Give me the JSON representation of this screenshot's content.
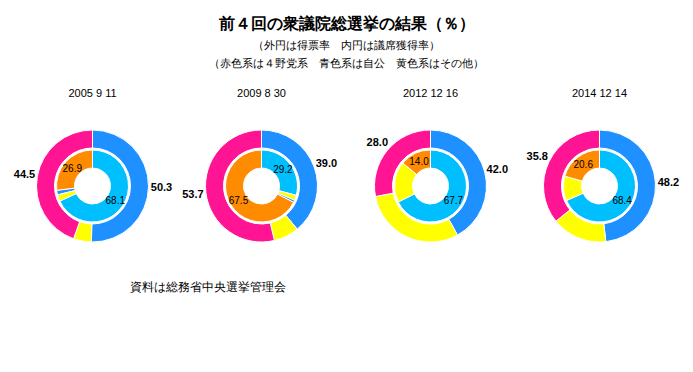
{
  "title": "前４回の衆議院総選挙の結果（％）",
  "subtitle": [
    "（外円は得票率　内円は議席獲得率）",
    "（赤色系は４野党系　青色系は自公　黄色系はその他）"
  ],
  "annotations": [
    "資料は総務省中央選挙管理会"
  ],
  "chart_data": [
    {
      "type": "pie",
      "title": "2005 9 11",
      "series": [
        {
          "values": [
            50.3,
            5.2,
            44.5
          ],
          "colors": [
            "#1e90ff",
            "#ffff00",
            "#ff1493"
          ],
          "value_labels": [
            "50.3",
            null,
            "44.5"
          ]
        },
        {
          "values": [
            68.1,
            3.0,
            2.0,
            26.9
          ],
          "colors": [
            "#00bfff",
            "#ffff00",
            "#1e90ff",
            "#ff8c00"
          ],
          "value_labels": [
            "68.1",
            null,
            null,
            "26.9"
          ]
        }
      ]
    },
    {
      "type": "pie",
      "title": "2009 8 30",
      "series": [
        {
          "values": [
            39.0,
            7.3,
            53.7
          ],
          "colors": [
            "#1e90ff",
            "#ffff00",
            "#ff1493"
          ],
          "value_labels": [
            "39.0",
            null,
            "53.7"
          ]
        },
        {
          "values": [
            29.2,
            2.3,
            1.0,
            67.5
          ],
          "colors": [
            "#00bfff",
            "#ffff00",
            "#1e90ff",
            "#ff8c00"
          ],
          "value_labels": [
            "29.2",
            null,
            null,
            "67.5"
          ]
        }
      ]
    },
    {
      "type": "pie",
      "title": "2012 12 16",
      "series": [
        {
          "values": [
            42.0,
            30.0,
            28.0
          ],
          "colors": [
            "#1e90ff",
            "#ffff00",
            "#ff1493"
          ],
          "value_labels": [
            "42.0",
            null,
            "28.0"
          ]
        },
        {
          "values": [
            67.7,
            18.3,
            14.0
          ],
          "colors": [
            "#00bfff",
            "#ffff00",
            "#ff8c00"
          ],
          "value_labels": [
            "67.7",
            null,
            "14.0"
          ]
        }
      ]
    },
    {
      "type": "pie",
      "title": "2014 12 14",
      "series": [
        {
          "values": [
            48.2,
            16.0,
            35.8
          ],
          "colors": [
            "#1e90ff",
            "#ffff00",
            "#ff1493"
          ],
          "value_labels": [
            "48.2",
            null,
            "35.8"
          ]
        },
        {
          "values": [
            68.4,
            11.0,
            20.6
          ],
          "colors": [
            "#00bfff",
            "#ffff00",
            "#ff8c00"
          ],
          "value_labels": [
            "68.4",
            null,
            "20.6"
          ]
        }
      ]
    }
  ]
}
